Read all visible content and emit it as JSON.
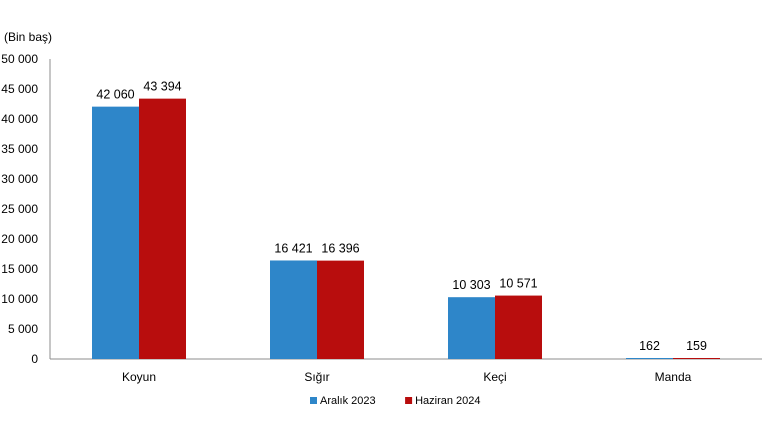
{
  "chart_data": {
    "type": "bar",
    "unit_label": "(Bin baş)",
    "categories": [
      "Koyun",
      "Sığır",
      "Keçi",
      "Manda"
    ],
    "series": [
      {
        "name": "Aralık 2023",
        "color": "#2E86C9",
        "values": [
          42060,
          16421,
          10303,
          162
        ],
        "labels": [
          "42 060",
          "16 421",
          "10 303",
          "162"
        ]
      },
      {
        "name": "Haziran 2024",
        "color": "#B80D0D",
        "values": [
          43394,
          16396,
          10571,
          159
        ],
        "labels": [
          "43 394",
          "16 396",
          "10 571",
          "159"
        ]
      }
    ],
    "ylim": [
      0,
      50000
    ],
    "yticks": [
      0,
      5000,
      10000,
      15000,
      20000,
      25000,
      30000,
      35000,
      40000,
      45000,
      50000
    ],
    "ytick_labels": [
      "0",
      "5 000",
      "10 000",
      "15 000",
      "20 000",
      "25 000",
      "30 000",
      "35 000",
      "40 000",
      "45 000",
      "50 000"
    ],
    "legend_position": "bottom-center",
    "grid": false
  }
}
